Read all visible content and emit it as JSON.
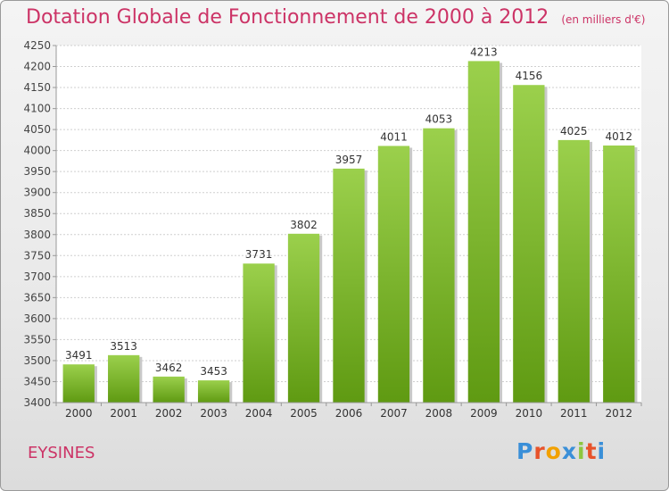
{
  "chart_data": {
    "type": "bar",
    "title": "Dotation Globale de Fonctionnement de 2000 à 2012",
    "subtitle": "(en milliers d'€)",
    "categories": [
      "2000",
      "2001",
      "2002",
      "2003",
      "2004",
      "2005",
      "2006",
      "2007",
      "2008",
      "2009",
      "2010",
      "2011",
      "2012"
    ],
    "values": [
      3491,
      3513,
      3462,
      3453,
      3731,
      3802,
      3957,
      4011,
      4053,
      4213,
      4156,
      4025,
      4012
    ],
    "ylim": [
      3400,
      4250
    ],
    "ytick_step": 50,
    "grid": true,
    "bar_color": "#8dc63f"
  },
  "footer": {
    "city": "EYSINES",
    "logo_letters": [
      "P",
      "r",
      "o",
      "x",
      "i",
      "t",
      "i"
    ],
    "logo_colors": [
      "#3a8fd8",
      "#e8532a",
      "#f2a100",
      "#3a8fd8",
      "#8dc63f",
      "#e8532a",
      "#3a8fd8"
    ]
  }
}
